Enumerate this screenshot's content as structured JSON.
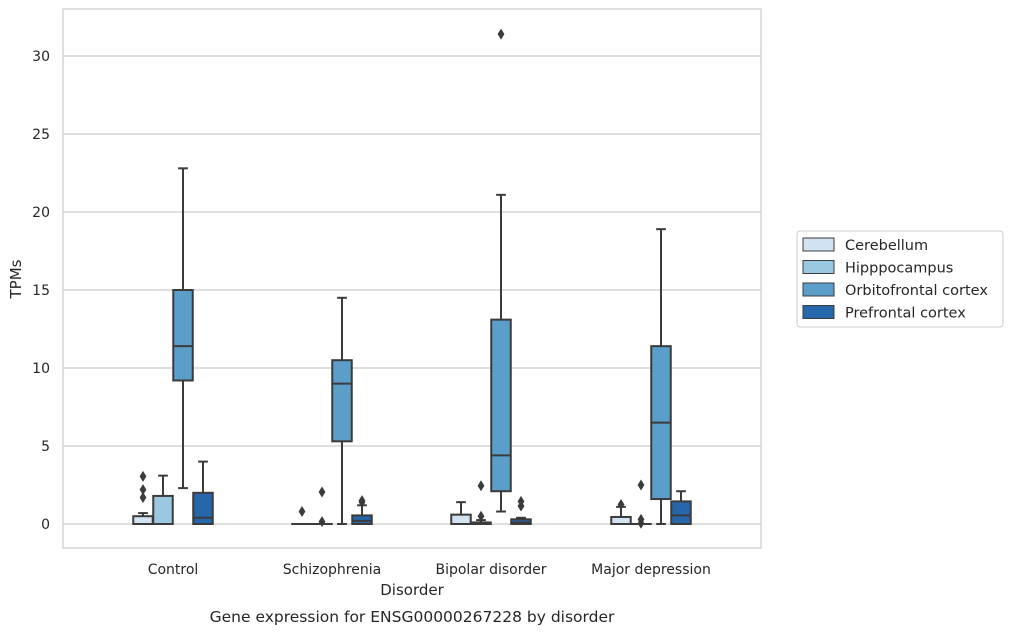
{
  "chart_data": {
    "type": "box",
    "caption": "Gene expression for ENSG00000267228 by disorder",
    "xlabel": "Disorder",
    "ylabel": "TPMs",
    "ylim": [
      -1.5,
      33
    ],
    "yticks": [
      0,
      5,
      10,
      15,
      20,
      25,
      30
    ],
    "grid": "horizontal",
    "legend_position": "right",
    "categories": [
      "Control",
      "Schizophrenia",
      "Bipolar disorder",
      "Major depression"
    ],
    "series": [
      {
        "name": "Cerebellum",
        "color": "#d1e2f2",
        "boxes": [
          {
            "whislo": 0,
            "q1": 0,
            "med": 0,
            "q3": 0.5,
            "whishi": 0.7,
            "fliers": [
              1.7,
              2.2,
              3.05
            ]
          },
          {
            "whislo": 0,
            "q1": 0,
            "med": 0,
            "q3": 0,
            "whishi": 0,
            "fliers": [
              0.8
            ]
          },
          {
            "whislo": 0,
            "q1": 0,
            "med": 0,
            "q3": 0.6,
            "whishi": 1.4,
            "fliers": []
          },
          {
            "whislo": 0,
            "q1": 0,
            "med": 0,
            "q3": 0.45,
            "whishi": 1.1,
            "fliers": [
              1.25
            ]
          }
        ]
      },
      {
        "name": "Hipppocampus",
        "color": "#9ac8e0",
        "boxes": [
          {
            "whislo": 0,
            "q1": 0,
            "med": 0,
            "q3": 1.8,
            "whishi": 3.1,
            "fliers": []
          },
          {
            "whislo": 0,
            "q1": 0,
            "med": 0,
            "q3": 0,
            "whishi": 0,
            "fliers": [
              0.15,
              2.05
            ]
          },
          {
            "whislo": 0,
            "q1": 0,
            "med": 0,
            "q3": 0.1,
            "whishi": 0.25,
            "fliers": [
              0.5,
              2.45
            ]
          },
          {
            "whislo": 0,
            "q1": 0,
            "med": 0,
            "q3": 0,
            "whishi": 0,
            "fliers": [
              0.05,
              0.3,
              2.5
            ]
          }
        ]
      },
      {
        "name": "Orbitofrontal cortex",
        "color": "#5a9ec9",
        "boxes": [
          {
            "whislo": 2.3,
            "q1": 9.2,
            "med": 11.4,
            "q3": 15.0,
            "whishi": 22.8,
            "fliers": []
          },
          {
            "whislo": 0,
            "q1": 5.3,
            "med": 9.0,
            "q3": 10.5,
            "whishi": 14.5,
            "fliers": []
          },
          {
            "whislo": 0.8,
            "q1": 2.1,
            "med": 4.4,
            "q3": 13.1,
            "whishi": 21.1,
            "fliers": [
              31.4
            ]
          },
          {
            "whislo": 0,
            "q1": 1.6,
            "med": 6.5,
            "q3": 11.4,
            "whishi": 18.9,
            "fliers": []
          }
        ]
      },
      {
        "name": "Prefrontal cortex",
        "color": "#2666ab",
        "boxes": [
          {
            "whislo": 0,
            "q1": 0,
            "med": 0.4,
            "q3": 2.0,
            "whishi": 4.0,
            "fliers": []
          },
          {
            "whislo": 0,
            "q1": 0,
            "med": 0.2,
            "q3": 0.55,
            "whishi": 1.2,
            "fliers": [
              1.4,
              1.5
            ]
          },
          {
            "whislo": 0,
            "q1": 0,
            "med": 0.1,
            "q3": 0.3,
            "whishi": 0.4,
            "fliers": [
              1.15,
              1.45
            ]
          },
          {
            "whislo": 0,
            "q1": 0,
            "med": 0.55,
            "q3": 1.45,
            "whishi": 2.1,
            "fliers": []
          }
        ]
      }
    ]
  }
}
